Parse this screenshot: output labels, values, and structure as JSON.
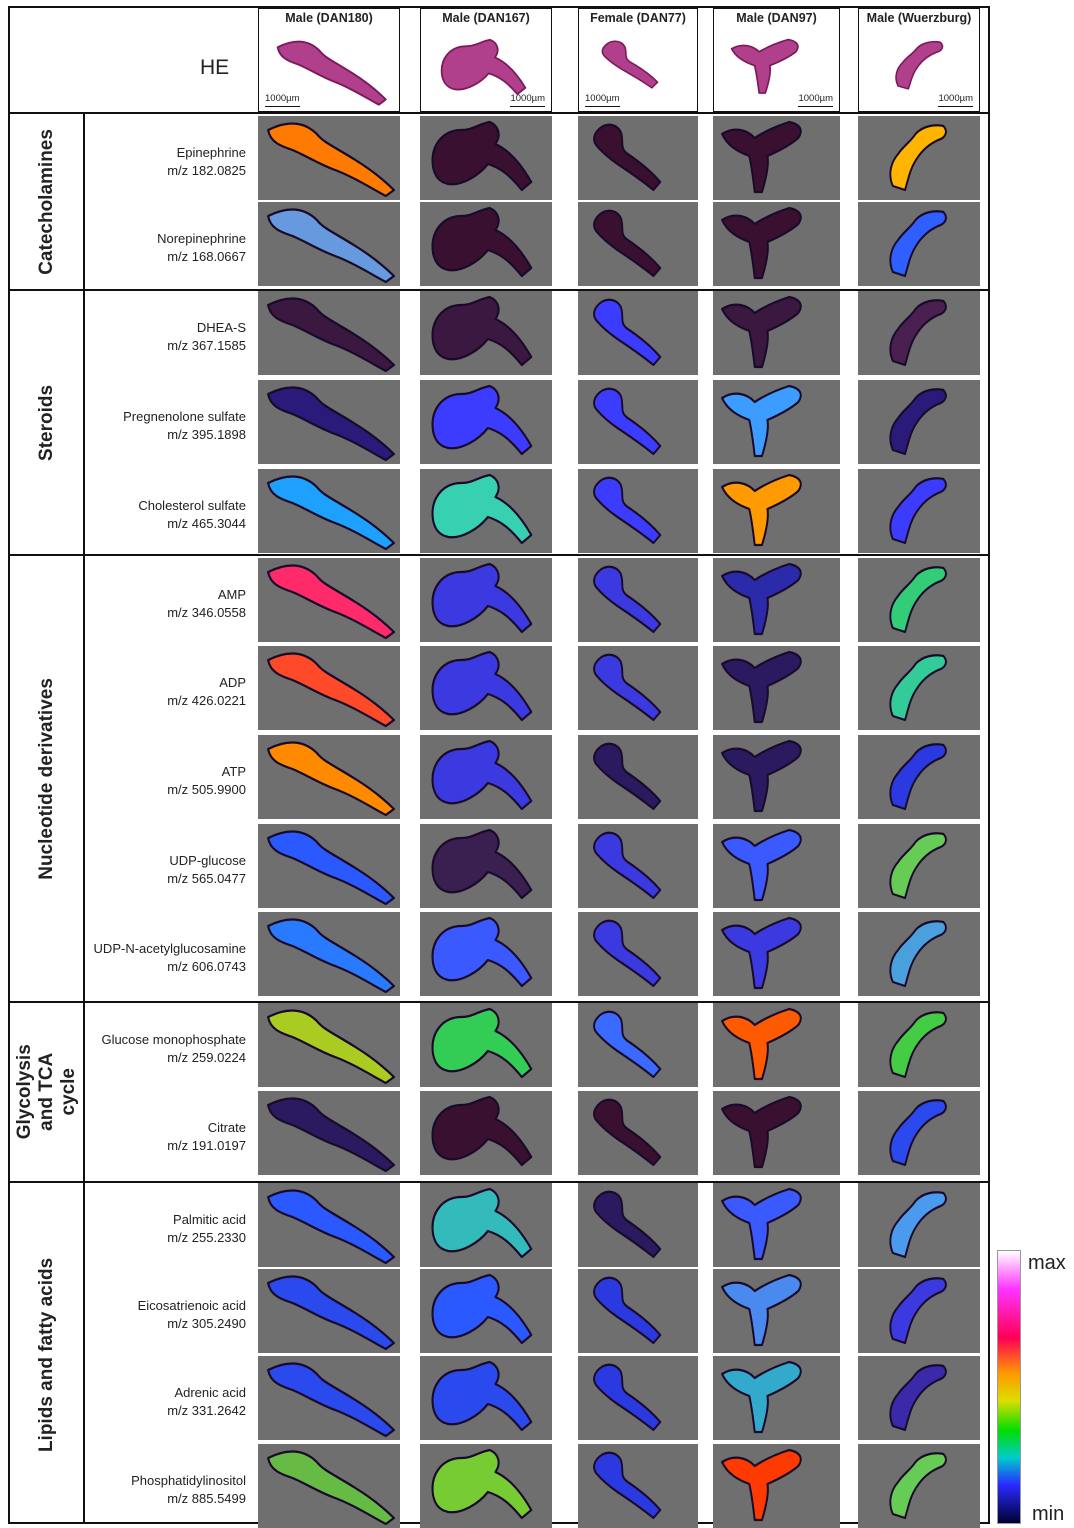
{
  "header": {
    "he_label": "HE",
    "columns": [
      {
        "title": "Male (DAN180)",
        "scale": "1000µm",
        "scale_side": "left"
      },
      {
        "title": "Male (DAN167)",
        "scale": "1000µm",
        "scale_side": "right"
      },
      {
        "title": "Female (DAN77)",
        "scale": "1000µm",
        "scale_side": "left"
      },
      {
        "title": "Male (DAN97)",
        "scale": "1000µm",
        "scale_side": "right"
      },
      {
        "title": "Male (Wuerzburg)",
        "scale": "1000µm",
        "scale_side": "right"
      }
    ]
  },
  "groups": [
    {
      "label": "Catecholamines"
    },
    {
      "label": "Steroids"
    },
    {
      "label": "Nucleotide derivatives"
    },
    {
      "label": "Glycolysis and TCA cycle"
    },
    {
      "label": "Lipids and fatty acids"
    }
  ],
  "rows": [
    {
      "name": "Epinephrine",
      "mz": "m/z 182.0825",
      "hues": [
        "#ff7a00",
        "#3a1030",
        "#3a1030",
        "#3a1030",
        "#ffb400"
      ]
    },
    {
      "name": "Norepinephrine",
      "mz": "m/z 168.0667",
      "hues": [
        "#6699dd",
        "#3a1030",
        "#3a1030",
        "#3a1030",
        "#2f5fff"
      ]
    },
    {
      "name": "DHEA-S",
      "mz": "m/z 367.1585",
      "hues": [
        "#3a1840",
        "#3a1840",
        "#3c3cff",
        "#3a1840",
        "#4a2050"
      ]
    },
    {
      "name": "Pregnenolone sulfate",
      "mz": "m/z 395.1898",
      "hues": [
        "#2a1a7a",
        "#3c3cff",
        "#3c3cff",
        "#3c9cff",
        "#2a1a7a"
      ]
    },
    {
      "name": "Cholesterol sulfate",
      "mz": "m/z 465.3044",
      "hues": [
        "#1ea0ff",
        "#37d0b0",
        "#3c3cff",
        "#ff9a00",
        "#3c3cff"
      ]
    },
    {
      "name": "AMP",
      "mz": "m/z 346.0558",
      "hues": [
        "#ff2a6a",
        "#3a3ae0",
        "#3a3ae0",
        "#2a2aaa",
        "#33cc77"
      ]
    },
    {
      "name": "ADP",
      "mz": "m/z 426.0221",
      "hues": [
        "#ff4a2a",
        "#3a3ae0",
        "#3a3ae0",
        "#2a1a60",
        "#33cc99"
      ]
    },
    {
      "name": "ATP",
      "mz": "m/z 505.9900",
      "hues": [
        "#ff8a00",
        "#3a3ae0",
        "#2a1a60",
        "#2a1a60",
        "#2a3ae0"
      ]
    },
    {
      "name": "UDP-glucose",
      "mz": "m/z 565.0477",
      "hues": [
        "#2a5aff",
        "#3a2050",
        "#3a3ae0",
        "#3a5aff",
        "#66cc55"
      ]
    },
    {
      "name": "UDP-N-acetylglucosamine",
      "mz": "m/z 606.0743",
      "hues": [
        "#2a7aff",
        "#3a5aff",
        "#3a3ae0",
        "#3a3ae0",
        "#4aa0dd"
      ]
    },
    {
      "name": "Glucose monophosphate",
      "mz": "m/z 259.0224",
      "hues": [
        "#aacc22",
        "#33cc55",
        "#3a6aff",
        "#ff5a00",
        "#44cc44"
      ]
    },
    {
      "name": "Citrate",
      "mz": "m/z 191.0197",
      "hues": [
        "#2a1a60",
        "#3a1030",
        "#3a1030",
        "#3a1030",
        "#2a4aee"
      ]
    },
    {
      "name": "Palmitic acid",
      "mz": "m/z 255.2330",
      "hues": [
        "#2a5aff",
        "#33bbbb",
        "#2a1a60",
        "#3a5aff",
        "#4a9aee"
      ]
    },
    {
      "name": "Eicosatrienoic acid",
      "mz": "m/z 305.2490",
      "hues": [
        "#2a4aee",
        "#2a5aff",
        "#2a3ae0",
        "#4a8aee",
        "#3a3ae0"
      ]
    },
    {
      "name": "Adrenic acid",
      "mz": "m/z 331.2642",
      "hues": [
        "#2a4aee",
        "#2a4aee",
        "#2a3ae0",
        "#33aacc",
        "#3a2aaa"
      ]
    },
    {
      "name": "Phosphatidylinositol",
      "mz": "m/z 885.5499",
      "hues": [
        "#66bb44",
        "#77cc33",
        "#2a3ae0",
        "#ff3a00",
        "#66cc55"
      ]
    }
  ],
  "colorbar": {
    "max_label": "max",
    "min_label": "min"
  },
  "colors": {
    "he_stain": "#b0408c",
    "tile_background": "#6f6f6f"
  }
}
